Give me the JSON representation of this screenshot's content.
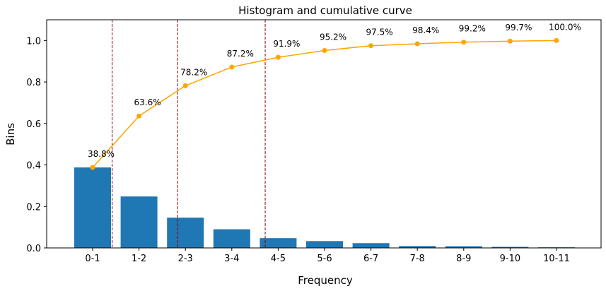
{
  "chart_data": {
    "type": "bar",
    "title": "Histogram and cumulative curve",
    "xlabel": "Frequency",
    "ylabel": "Bins",
    "ylim": [
      0,
      1.1
    ],
    "yticks": [
      "0.0",
      "0.2",
      "0.4",
      "0.6",
      "0.8",
      "1.0"
    ],
    "categories": [
      "0-1",
      "1-2",
      "2-3",
      "3-4",
      "4-5",
      "5-6",
      "6-7",
      "7-8",
      "8-9",
      "9-10",
      "10-11"
    ],
    "series": [
      {
        "type": "bar",
        "values": [
          0.388,
          0.248,
          0.146,
          0.09,
          0.047,
          0.033,
          0.023,
          0.009,
          0.008,
          0.005,
          0.003
        ]
      },
      {
        "type": "line",
        "values": [
          0.388,
          0.636,
          0.782,
          0.872,
          0.919,
          0.952,
          0.975,
          0.984,
          0.992,
          0.997,
          1.0
        ],
        "labels": [
          "38.8%",
          "63.6%",
          "78.2%",
          "87.2%",
          "91.9%",
          "95.2%",
          "97.5%",
          "98.4%",
          "99.2%",
          "99.7%",
          "100.0%"
        ]
      }
    ],
    "reference_lines_x": [
      0.42,
      1.83,
      3.72
    ],
    "grid": false,
    "legend": "none",
    "colors": {
      "bar": "#1f77b4",
      "line": "#ffa500",
      "vline": "#8b0000"
    }
  }
}
